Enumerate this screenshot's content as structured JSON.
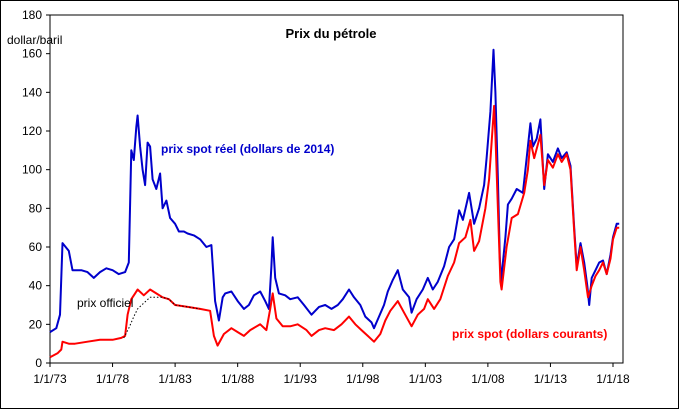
{
  "chart_data": {
    "type": "line",
    "title": "Prix du pétrole",
    "ylabel": "dollar/baril",
    "xlabel": "",
    "ylim": [
      0,
      180
    ],
    "xlim": [
      1973.0,
      2018.8
    ],
    "y_ticks": [
      0,
      20,
      40,
      60,
      80,
      100,
      120,
      140,
      160,
      180
    ],
    "x_ticks": [
      {
        "value": 1973,
        "label": "1/1/73"
      },
      {
        "value": 1978,
        "label": "1/1/78"
      },
      {
        "value": 1983,
        "label": "1/1/83"
      },
      {
        "value": 1988,
        "label": "1/1/88"
      },
      {
        "value": 1993,
        "label": "1/1/93"
      },
      {
        "value": 1998,
        "label": "1/1/98"
      },
      {
        "value": 2003,
        "label": "1/1/03"
      },
      {
        "value": 2008,
        "label": "1/1/08"
      },
      {
        "value": 2013,
        "label": "1/1/13"
      },
      {
        "value": 2018,
        "label": "1/1/18"
      }
    ],
    "grid": false,
    "series": [
      {
        "name": "prix spot réel (dollars de 2014)",
        "color": "#0000cc",
        "points": [
          [
            1973.0,
            16
          ],
          [
            1973.5,
            18
          ],
          [
            1973.8,
            25
          ],
          [
            1974.0,
            62
          ],
          [
            1974.5,
            58
          ],
          [
            1974.8,
            48
          ],
          [
            1975.5,
            48
          ],
          [
            1976.0,
            47
          ],
          [
            1976.5,
            44
          ],
          [
            1977.0,
            47
          ],
          [
            1977.5,
            49
          ],
          [
            1978.0,
            48
          ],
          [
            1978.5,
            46
          ],
          [
            1979.0,
            47
          ],
          [
            1979.3,
            52
          ],
          [
            1979.5,
            110
          ],
          [
            1979.7,
            105
          ],
          [
            1979.9,
            122
          ],
          [
            1980.0,
            128
          ],
          [
            1980.2,
            112
          ],
          [
            1980.4,
            100
          ],
          [
            1980.6,
            92
          ],
          [
            1980.8,
            114
          ],
          [
            1981.0,
            112
          ],
          [
            1981.2,
            95
          ],
          [
            1981.5,
            90
          ],
          [
            1981.8,
            98
          ],
          [
            1982.0,
            80
          ],
          [
            1982.3,
            84
          ],
          [
            1982.6,
            75
          ],
          [
            1983.0,
            72
          ],
          [
            1983.3,
            68
          ],
          [
            1983.7,
            68
          ],
          [
            1984.0,
            67
          ],
          [
            1984.5,
            66
          ],
          [
            1985.0,
            64
          ],
          [
            1985.5,
            60
          ],
          [
            1985.9,
            61
          ],
          [
            1986.2,
            32
          ],
          [
            1986.5,
            22
          ],
          [
            1986.8,
            34
          ],
          [
            1987.0,
            36
          ],
          [
            1987.5,
            37
          ],
          [
            1988.0,
            32
          ],
          [
            1988.5,
            28
          ],
          [
            1988.9,
            30
          ],
          [
            1989.3,
            35
          ],
          [
            1989.8,
            37
          ],
          [
            1990.2,
            32
          ],
          [
            1990.5,
            28
          ],
          [
            1990.7,
            50
          ],
          [
            1990.8,
            65
          ],
          [
            1991.0,
            44
          ],
          [
            1991.3,
            36
          ],
          [
            1991.8,
            35
          ],
          [
            1992.2,
            33
          ],
          [
            1992.8,
            34
          ],
          [
            1993.3,
            30
          ],
          [
            1993.9,
            25
          ],
          [
            1994.5,
            29
          ],
          [
            1995.0,
            30
          ],
          [
            1995.5,
            28
          ],
          [
            1996.0,
            30
          ],
          [
            1996.4,
            33
          ],
          [
            1996.9,
            38
          ],
          [
            1997.3,
            34
          ],
          [
            1997.8,
            30
          ],
          [
            1998.2,
            24
          ],
          [
            1998.7,
            21
          ],
          [
            1998.9,
            18
          ],
          [
            1999.3,
            24
          ],
          [
            1999.7,
            30
          ],
          [
            2000.0,
            37
          ],
          [
            2000.4,
            43
          ],
          [
            2000.8,
            48
          ],
          [
            2001.2,
            38
          ],
          [
            2001.7,
            34
          ],
          [
            2001.9,
            26
          ],
          [
            2002.3,
            33
          ],
          [
            2002.8,
            38
          ],
          [
            2003.2,
            44
          ],
          [
            2003.6,
            38
          ],
          [
            2004.0,
            42
          ],
          [
            2004.5,
            50
          ],
          [
            2004.9,
            60
          ],
          [
            2005.3,
            64
          ],
          [
            2005.7,
            79
          ],
          [
            2006.0,
            74
          ],
          [
            2006.5,
            88
          ],
          [
            2006.9,
            72
          ],
          [
            2007.3,
            80
          ],
          [
            2007.7,
            92
          ],
          [
            2007.9,
            106
          ],
          [
            2008.2,
            130
          ],
          [
            2008.45,
            162
          ],
          [
            2008.6,
            140
          ],
          [
            2008.8,
            95
          ],
          [
            2008.95,
            55
          ],
          [
            2009.05,
            42
          ],
          [
            2009.4,
            65
          ],
          [
            2009.6,
            82
          ],
          [
            2009.9,
            85
          ],
          [
            2010.3,
            90
          ],
          [
            2010.8,
            88
          ],
          [
            2011.2,
            112
          ],
          [
            2011.4,
            124
          ],
          [
            2011.6,
            112
          ],
          [
            2011.9,
            116
          ],
          [
            2012.2,
            126
          ],
          [
            2012.5,
            90
          ],
          [
            2012.8,
            108
          ],
          [
            2013.2,
            104
          ],
          [
            2013.6,
            111
          ],
          [
            2013.9,
            106
          ],
          [
            2014.3,
            109
          ],
          [
            2014.6,
            102
          ],
          [
            2014.9,
            70
          ],
          [
            2015.1,
            50
          ],
          [
            2015.4,
            62
          ],
          [
            2015.7,
            52
          ],
          [
            2015.95,
            40
          ],
          [
            2016.1,
            30
          ],
          [
            2016.3,
            44
          ],
          [
            2016.6,
            48
          ],
          [
            2016.9,
            52
          ],
          [
            2017.2,
            53
          ],
          [
            2017.5,
            46
          ],
          [
            2017.8,
            56
          ],
          [
            2018.0,
            65
          ],
          [
            2018.3,
            72
          ],
          [
            2018.5,
            72
          ]
        ]
      },
      {
        "name": "prix spot (dollars courants)",
        "color": "#ff0000",
        "points": [
          [
            1973.0,
            3
          ],
          [
            1973.6,
            5
          ],
          [
            1973.9,
            7
          ],
          [
            1974.0,
            11
          ],
          [
            1974.5,
            10
          ],
          [
            1975.0,
            10
          ],
          [
            1976.0,
            11
          ],
          [
            1977.0,
            12
          ],
          [
            1978.0,
            12
          ],
          [
            1978.7,
            13
          ],
          [
            1979.0,
            14
          ],
          [
            1979.2,
            25
          ],
          [
            1979.5,
            33
          ],
          [
            1979.8,
            36
          ],
          [
            1980.0,
            38
          ],
          [
            1980.5,
            35
          ],
          [
            1981.0,
            38
          ],
          [
            1981.5,
            36
          ],
          [
            1982.0,
            34
          ],
          [
            1982.5,
            33
          ],
          [
            1983.0,
            30
          ],
          [
            1984.0,
            29
          ],
          [
            1985.0,
            28
          ],
          [
            1985.8,
            27
          ],
          [
            1986.1,
            14
          ],
          [
            1986.4,
            9
          ],
          [
            1986.9,
            15
          ],
          [
            1987.5,
            18
          ],
          [
            1988.0,
            16
          ],
          [
            1988.5,
            14
          ],
          [
            1989.0,
            17
          ],
          [
            1989.8,
            20
          ],
          [
            1990.3,
            17
          ],
          [
            1990.6,
            28
          ],
          [
            1990.8,
            36
          ],
          [
            1991.1,
            23
          ],
          [
            1991.6,
            19
          ],
          [
            1992.2,
            19
          ],
          [
            1992.8,
            20
          ],
          [
            1993.5,
            17
          ],
          [
            1993.9,
            14
          ],
          [
            1994.5,
            17
          ],
          [
            1995.0,
            18
          ],
          [
            1995.7,
            17
          ],
          [
            1996.3,
            20
          ],
          [
            1996.9,
            24
          ],
          [
            1997.4,
            20
          ],
          [
            1997.9,
            17
          ],
          [
            1998.4,
            14
          ],
          [
            1998.9,
            11
          ],
          [
            1999.4,
            15
          ],
          [
            1999.8,
            22
          ],
          [
            2000.2,
            27
          ],
          [
            2000.8,
            32
          ],
          [
            2001.3,
            26
          ],
          [
            2001.9,
            19
          ],
          [
            2002.4,
            25
          ],
          [
            2002.9,
            28
          ],
          [
            2003.2,
            33
          ],
          [
            2003.7,
            28
          ],
          [
            2004.2,
            33
          ],
          [
            2004.8,
            45
          ],
          [
            2005.3,
            52
          ],
          [
            2005.7,
            62
          ],
          [
            2006.2,
            65
          ],
          [
            2006.6,
            74
          ],
          [
            2006.9,
            58
          ],
          [
            2007.3,
            63
          ],
          [
            2007.8,
            80
          ],
          [
            2008.1,
            95
          ],
          [
            2008.5,
            133
          ],
          [
            2008.6,
            118
          ],
          [
            2008.8,
            80
          ],
          [
            2009.0,
            42
          ],
          [
            2009.1,
            38
          ],
          [
            2009.5,
            60
          ],
          [
            2009.9,
            75
          ],
          [
            2010.4,
            77
          ],
          [
            2010.9,
            88
          ],
          [
            2011.2,
            100
          ],
          [
            2011.4,
            115
          ],
          [
            2011.7,
            106
          ],
          [
            2012.2,
            118
          ],
          [
            2012.5,
            92
          ],
          [
            2012.8,
            105
          ],
          [
            2013.2,
            101
          ],
          [
            2013.6,
            108
          ],
          [
            2013.9,
            104
          ],
          [
            2014.3,
            108
          ],
          [
            2014.6,
            100
          ],
          [
            2014.9,
            68
          ],
          [
            2015.1,
            48
          ],
          [
            2015.4,
            60
          ],
          [
            2015.7,
            48
          ],
          [
            2016.0,
            34
          ],
          [
            2016.3,
            40
          ],
          [
            2016.6,
            45
          ],
          [
            2016.9,
            48
          ],
          [
            2017.2,
            52
          ],
          [
            2017.5,
            46
          ],
          [
            2017.8,
            54
          ],
          [
            2018.0,
            64
          ],
          [
            2018.3,
            70
          ],
          [
            2018.5,
            70
          ]
        ]
      },
      {
        "name": "prix officiel",
        "color": "#000000",
        "style": "dotted",
        "points": [
          [
            1978.9,
            13
          ],
          [
            1979.3,
            18
          ],
          [
            1979.7,
            24
          ],
          [
            1980.0,
            28
          ],
          [
            1980.5,
            31
          ],
          [
            1981.0,
            34
          ],
          [
            1981.5,
            34
          ],
          [
            1982.0,
            34
          ],
          [
            1982.5,
            33
          ],
          [
            1983.0,
            30
          ],
          [
            1984.0,
            29
          ],
          [
            1985.0,
            28
          ]
        ]
      }
    ],
    "annotations": [
      {
        "text": "prix spot réel (dollars de 2014)",
        "color": "#0000cc"
      },
      {
        "text": "prix spot (dollars courants)",
        "color": "#ff0000"
      },
      {
        "text": "prix officiel",
        "color": "#000000"
      }
    ]
  }
}
